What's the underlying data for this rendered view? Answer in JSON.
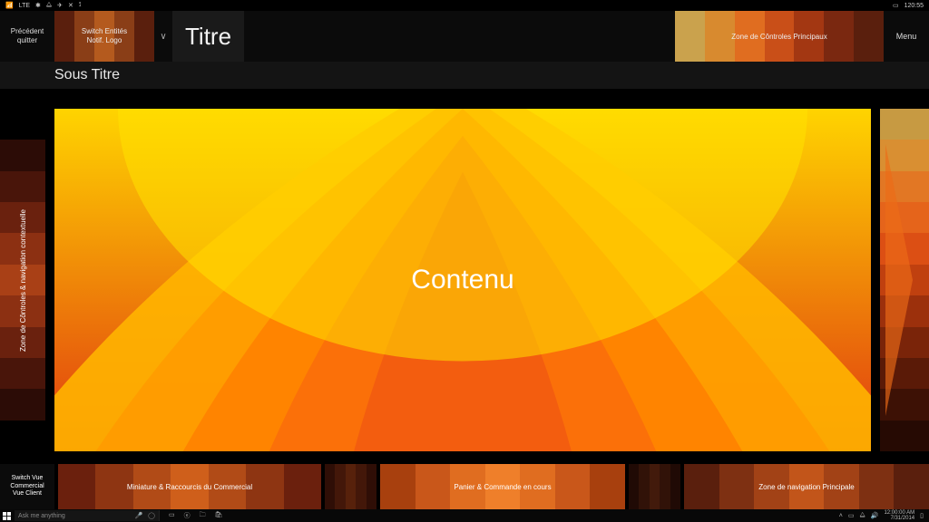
{
  "status": {
    "network_label": "LTE",
    "battery_time": "120:55"
  },
  "header": {
    "back_line1": "Précédent",
    "back_line2": "quitter",
    "switch_line1": "Switch Entités",
    "switch_line2": "Notif. Logo",
    "switch_colors": [
      "#5a1f0d",
      "#8a3e17",
      "#b45a1e",
      "#8a3e17",
      "#5a1f0d"
    ],
    "caret": "∨",
    "title": "Titre",
    "controls_label": "Zone de Côntroles Principaux",
    "controls_colors": [
      "#caa24d",
      "#d88a2f",
      "#e06d20",
      "#c94f18",
      "#a33712",
      "#7a2810",
      "#5a1f0d"
    ],
    "menu_label": "Menu"
  },
  "subtitle": "Sous Titre",
  "left_rail": {
    "label": "Zone de Côntroles & navigation contextuelle",
    "colors": [
      "#000000",
      "#2c0c06",
      "#49150a",
      "#6a210e",
      "#8c3012",
      "#a94016",
      "#8c3012",
      "#6a210e",
      "#49150a",
      "#2c0c06",
      "#000000"
    ]
  },
  "right_rail": {
    "colors": [
      "#c79a42",
      "#d98f32",
      "#e27724",
      "#e5641b",
      "#dc4f14",
      "#c0400f",
      "#9c300c",
      "#7a2409",
      "#5a1a07",
      "#3d1105",
      "#260a03"
    ]
  },
  "content": {
    "label": "Contenu",
    "bg_top": "#ffd400",
    "bg_bottom": "#e03a10",
    "petal_colors": [
      "#ffb400",
      "#ff9a00",
      "#ff7e00",
      "#f96a0c",
      "#ef5512"
    ]
  },
  "footer": {
    "switchview_line1": "Switch Vue",
    "switchview_line2": "Commercial",
    "switchview_line3": "Vue Client",
    "miniature_label": "Miniature & Raccourcis du Commercial",
    "miniature_colors": [
      "#6b200d",
      "#8e3512",
      "#b14b17",
      "#cf5f1b",
      "#b14b17",
      "#8e3512",
      "#6b200d"
    ],
    "between1_colors": [
      "#551a0b",
      "#7a2a10",
      "#9e3c14",
      "#7a2a10",
      "#551a0b"
    ],
    "panier_label": "Panier & Commande en cours",
    "panier_colors": [
      "#a8400e",
      "#c9571a",
      "#e06d20",
      "#ef7f2a",
      "#e06d20",
      "#c9571a",
      "#a8400e"
    ],
    "between2_colors": [
      "#3a120a",
      "#59210f",
      "#793014",
      "#59210f",
      "#3a120a"
    ],
    "navprinc_label": "Zone de navigation Principale",
    "navprinc_colors": [
      "#5a1f0d",
      "#7e3012",
      "#a24216",
      "#c2551a",
      "#a24216",
      "#7e3012",
      "#5a1f0d"
    ]
  },
  "taskbar": {
    "search_placeholder": "Ask me anything",
    "clock_time": "12:00:00 AM",
    "clock_date": "7/31/2014"
  }
}
